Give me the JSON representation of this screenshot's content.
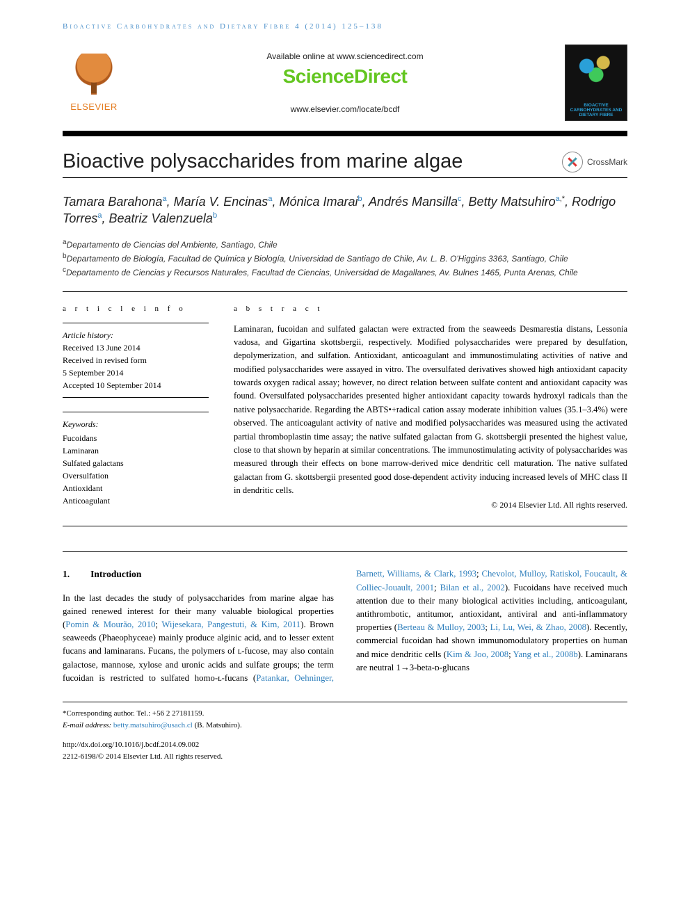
{
  "running_head": "Bioactive Carbohydrates and Dietary Fibre 4 (2014) 125–138",
  "banner": {
    "elsevier_label": "ELSEVIER",
    "available_line": "Available online at www.sciencedirect.com",
    "sd_logo_text": "ScienceDirect",
    "locate_line": "www.elsevier.com/locate/bcdf",
    "journal_cover_title": "BIOACTIVE CARBOHYDRATES AND DIETARY FIBRE"
  },
  "crossmark_label": "CrossMark",
  "article": {
    "title": "Bioactive polysaccharides from marine algae",
    "authors_html_parts": [
      {
        "name": "Tamara Barahona",
        "aff": "a"
      },
      {
        "name": "María V. Encinas",
        "aff": "a"
      },
      {
        "name": "Mónica Imarai",
        "aff": "b"
      },
      {
        "name": "Andrés Mansilla",
        "aff": "c"
      },
      {
        "name": "Betty Matsuhiro",
        "aff": "a",
        "corr": true
      },
      {
        "name": "Rodrigo Torres",
        "aff": "a"
      },
      {
        "name": "Beatriz Valenzuela",
        "aff": "b"
      }
    ],
    "affiliations": [
      {
        "key": "a",
        "text": "Departamento de Ciencias del Ambiente, Santiago, Chile"
      },
      {
        "key": "b",
        "text": "Departamento de Biología, Facultad de Química y Biología, Universidad de Santiago de Chile, Av. L. B. O'Higgins 3363, Santiago, Chile"
      },
      {
        "key": "c",
        "text": "Departamento de Ciencias y Recursos Naturales, Facultad de Ciencias, Universidad de Magallanes, Av. Bulnes 1465, Punta Arenas, Chile"
      }
    ]
  },
  "info": {
    "section_label": "a r t i c l e   i n f o",
    "history_label": "Article history:",
    "history": [
      "Received 13 June 2014",
      "Received in revised form",
      "5 September 2014",
      "Accepted 10 September 2014"
    ],
    "keywords_label": "Keywords:",
    "keywords": [
      "Fucoidans",
      "Laminaran",
      "Sulfated galactans",
      "Oversulfation",
      "Antioxidant",
      "Anticoagulant"
    ]
  },
  "abstract": {
    "section_label": "a b s t r a c t",
    "text": "Laminaran, fucoidan and sulfated galactan were extracted from the seaweeds Desmarestia distans, Lessonia vadosa, and Gigartina skottsbergii, respectively. Modified polysaccharides were prepared by desulfation, depolymerization, and sulfation. Antioxidant, anticoagulant and immunostimulating activities of native and modified polysaccharides were assayed in vitro. The oversulfated derivatives showed high antioxidant capacity towards oxygen radical assay; however, no direct relation between sulfate content and antioxidant capacity was found. Oversulfated polysaccharides presented higher antioxidant capacity towards hydroxyl radicals than the native polysaccharide. Regarding the ABTS•+radical cation assay moderate inhibition values (35.1–3.4%) were observed. The anticoagulant activity of native and modified polysaccharides was measured using the activated partial thromboplastin time assay; the native sulfated galactan from G. skottsbergii presented the highest value, close to that shown by heparin at similar concentrations. The immunostimulating activity of polysaccharides was measured through their effects on bone marrow-derived mice dendritic cell maturation. The native sulfated galactan from G. skottsbergii presented good dose-dependent activity inducing increased levels of MHC class II in dendritic cells.",
    "copyright": "© 2014 Elsevier Ltd. All rights reserved."
  },
  "intro": {
    "number": "1.",
    "title": "Introduction",
    "col1": "In the last decades the study of polysaccharides from marine algae has gained renewed interest for their many valuable biological properties (",
    "ref1": "Pomin & Mourão, 2010",
    "sep1": "; ",
    "ref2": "Wijesekara, Pangestuti, & Kim, 2011",
    "col1b": "). Brown seaweeds (Phaeophyceae) mainly produce alginic acid, and to lesser extent fucans and laminarans. Fucans, the polymers of ʟ-fucose, may also contain galactose, mannose, xylose and uronic acids and sulfate groups; the term fucoidan is restricted to sulfated",
    "col2a": "homo-ʟ-fucans (",
    "ref3": "Patankar, Oehninger, Barnett, Williams, & Clark, 1993",
    "sep2": "; ",
    "ref4": "Chevolot, Mulloy, Ratiskol, Foucault, & Colliec-Jouault, 2001",
    "sep3": "; ",
    "ref5": "Bilan et al., 2002",
    "col2b": "). Fucoidans have received much attention due to their many biological activities including, anticoagulant, antithrombotic, antitumor, antioxidant, antiviral and anti-inflammatory properties (",
    "ref6": "Berteau & Mulloy, 2003",
    "sep4": "; ",
    "ref7": "Li, Lu, Wei, & Zhao, 2008",
    "col2c": "). Recently, commercial fucoidan had shown immunomodulatory properties on human and mice dendritic cells (",
    "ref8": "Kim & Joo, 2008",
    "sep5": "; ",
    "ref9": "Yang et al., 2008b",
    "col2d": "). Laminarans are neutral 1→3-beta-ᴅ-glucans"
  },
  "footer": {
    "corr_label": "*Corresponding author.",
    "tel": " Tel.: +56 2 27181159.",
    "email_label": "E-mail address: ",
    "email": "betty.matsuhiro@usach.cl",
    "email_paren": " (B. Matsuhiro).",
    "doi": "http://dx.doi.org/10.1016/j.bcdf.2014.09.002",
    "issn_line": "2212-6198/© 2014 Elsevier Ltd. All rights reserved."
  },
  "colors": {
    "link": "#2f7fbc",
    "sd_green": "#63c620",
    "elsevier_orange": "#e47b1e"
  }
}
